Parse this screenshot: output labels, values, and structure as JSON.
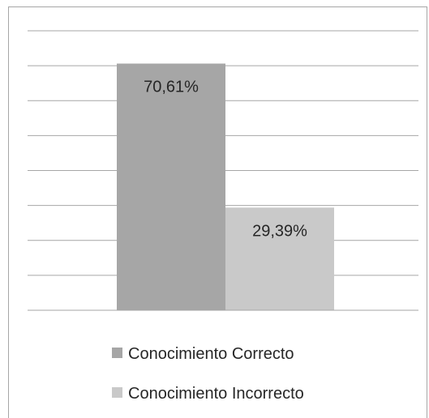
{
  "chart_data": {
    "type": "bar",
    "categories": [
      "Conocimiento Correcto",
      "Conocimiento Incorrecto"
    ],
    "values": [
      70.61,
      29.39
    ],
    "data_labels": [
      "70,61%",
      "29,39%"
    ],
    "ylim": [
      0,
      80
    ],
    "grid": true,
    "legend": "bottom",
    "colors": [
      "#a6a6a6",
      "#c9c9c9"
    ],
    "legend_entries": [
      {
        "label": "Conocimiento Correcto",
        "color": "#a6a6a6"
      },
      {
        "label": "Conocimiento Incorrecto",
        "color": "#c9c9c9"
      }
    ]
  }
}
